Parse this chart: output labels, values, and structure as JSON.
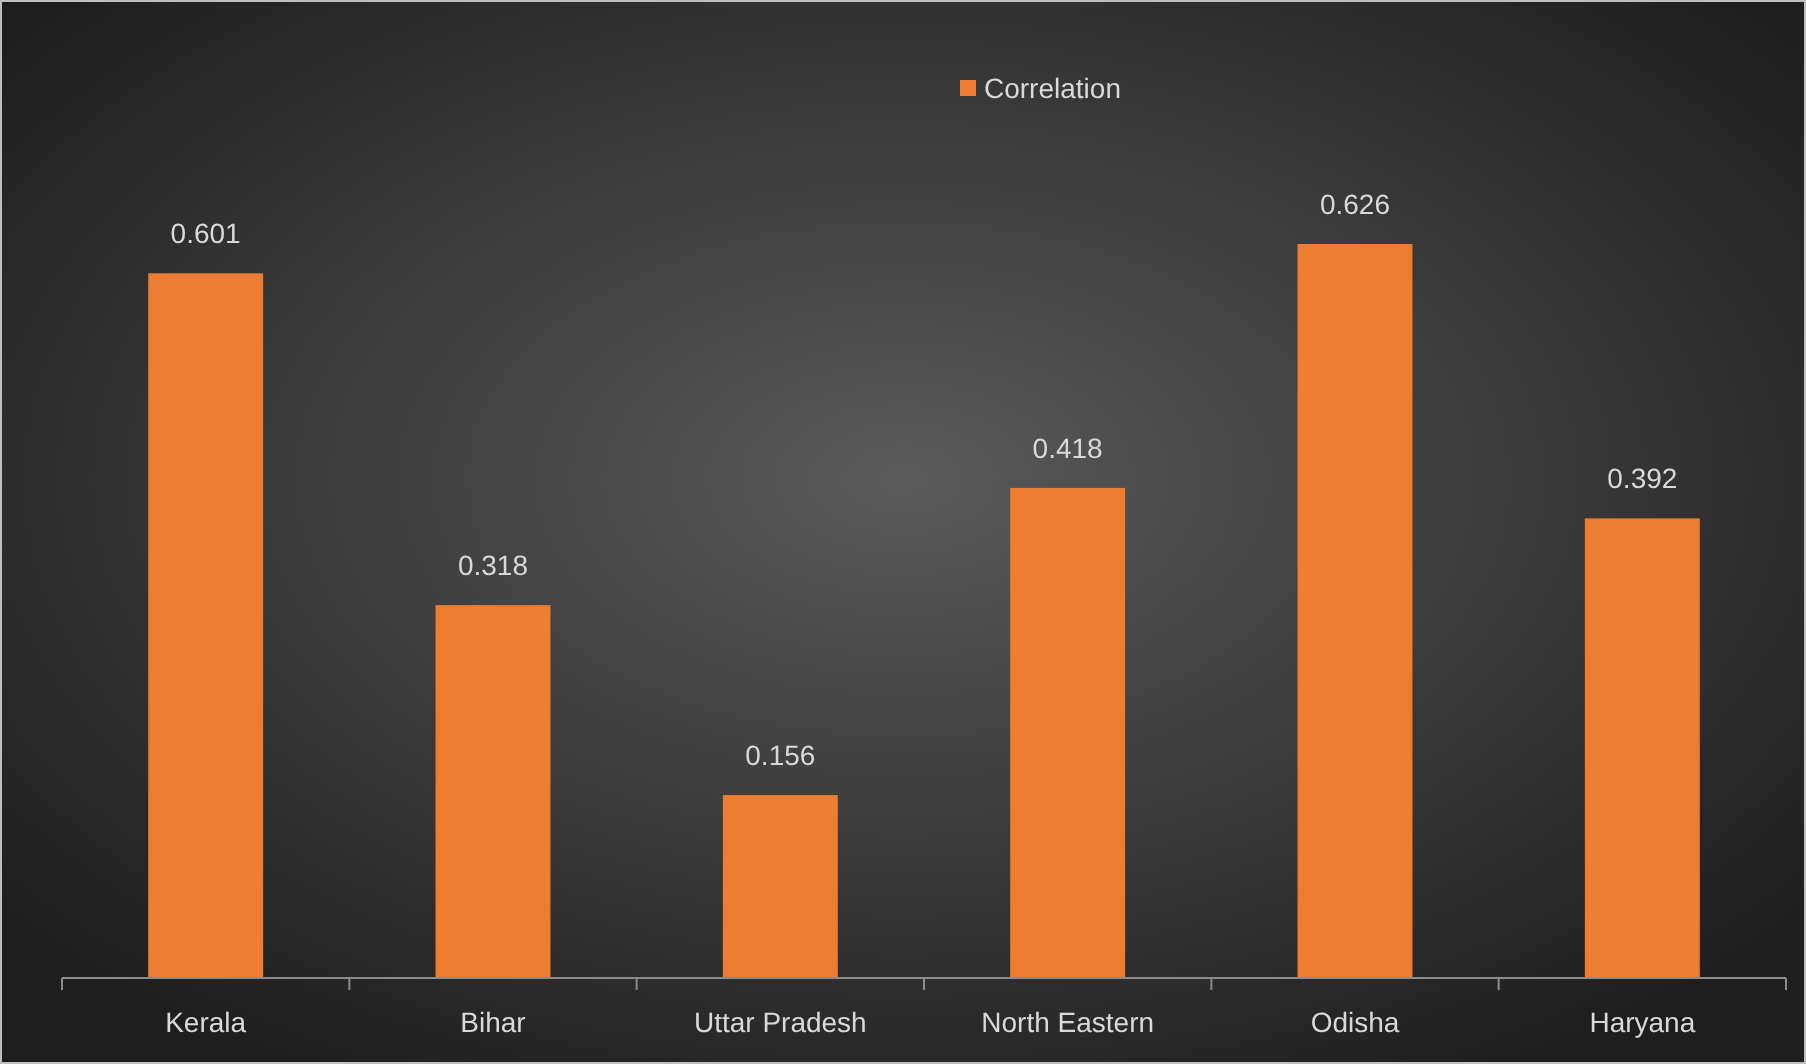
{
  "chart_data": {
    "type": "bar",
    "categories": [
      "Kerala",
      "Bihar",
      "Uttar Pradesh",
      "North Eastern",
      "Odisha",
      "Haryana"
    ],
    "series": [
      {
        "name": "Correlation",
        "color": "#ed7d31",
        "values": [
          0.601,
          0.318,
          0.156,
          0.418,
          0.626,
          0.392
        ]
      }
    ],
    "data_labels": true,
    "legend": "top"
  }
}
